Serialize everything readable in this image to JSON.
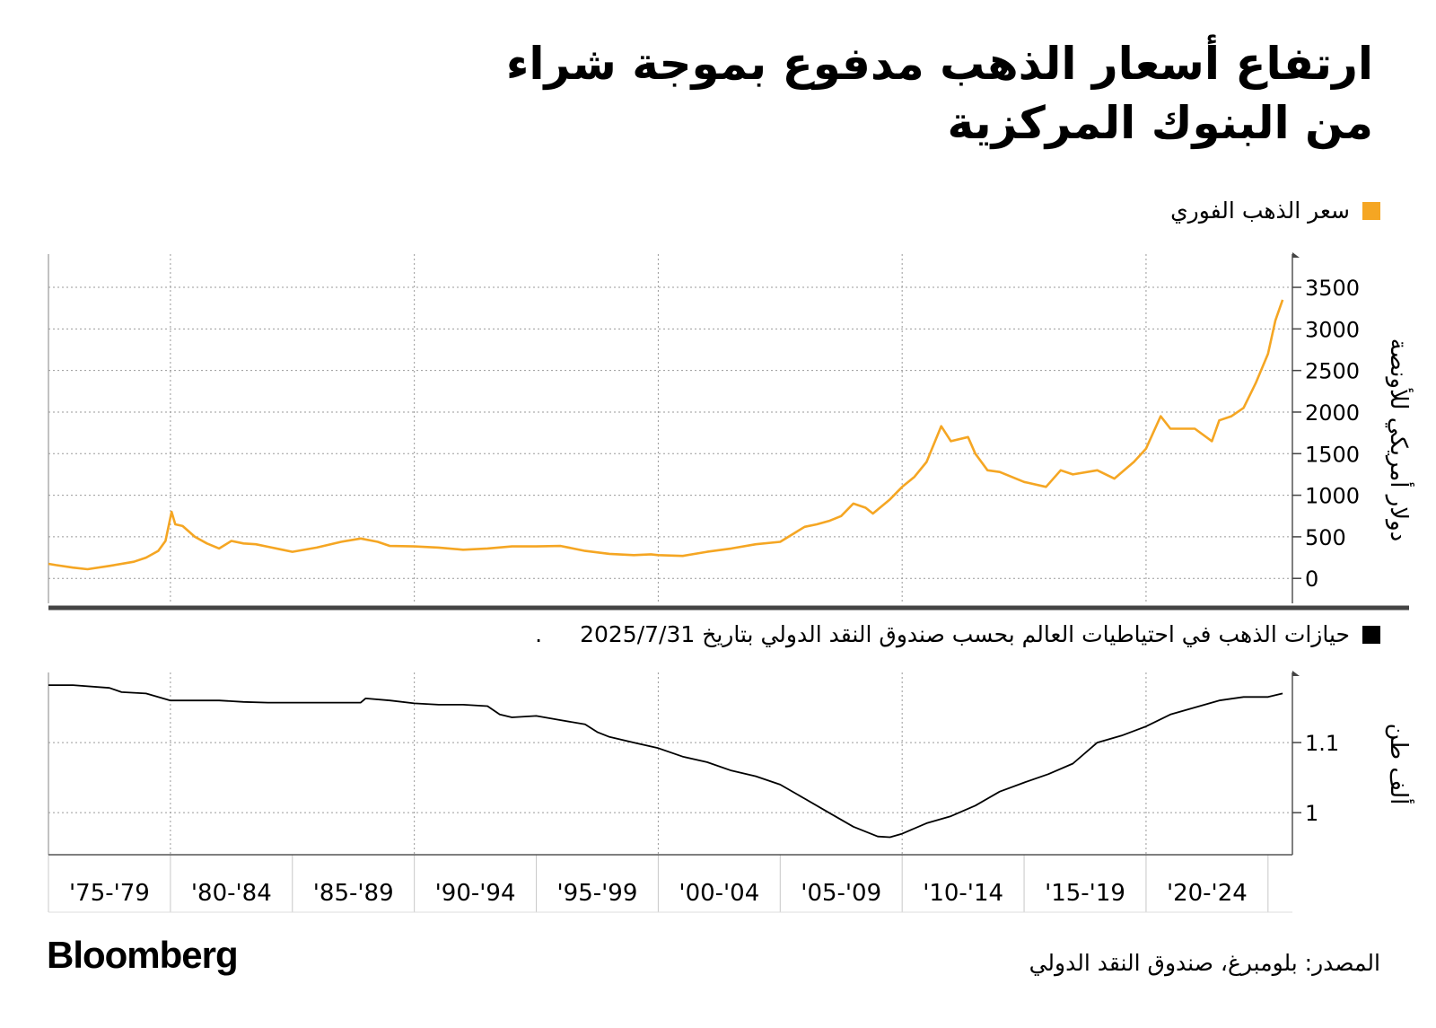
{
  "title": "ارتفاع أسعار الذهب مدفوع بموجة شراء من البنوك المركزية",
  "source": "المصدر: بلومبرغ، صندوق النقد الدولي",
  "brand": "Bloomberg",
  "colors": {
    "gold": "#f5a623",
    "reserves": "#000000",
    "grid": "#9a9a9a"
  },
  "chart_data": [
    {
      "type": "line",
      "legend": "سعر الذهب الفوري",
      "ylabel": "دولار أمريكي للأونصة",
      "ylim": [
        -300,
        3900
      ],
      "yticks": [
        0,
        500,
        1000,
        1500,
        2000,
        2500,
        3000,
        3500
      ],
      "grid": true,
      "legend_position": "top-right",
      "series": [
        {
          "x": [
            1975.0,
            1975.3,
            1976.0,
            1976.6,
            1977.5,
            1978.5,
            1979.0,
            1979.5,
            1979.8,
            1980.05,
            1980.2,
            1980.5,
            1981.0,
            1981.5,
            1982.0,
            1982.5,
            1983.0,
            1983.5,
            1984.0,
            1984.5,
            1985.0,
            1986.0,
            1987.0,
            1987.8,
            1988.5,
            1989.0,
            1990.0,
            1991.0,
            1992.0,
            1993.0,
            1994.0,
            1995.0,
            1996.0,
            1997.0,
            1998.0,
            1999.0,
            1999.7,
            2000.0,
            2001.0,
            2002.0,
            2003.0,
            2004.0,
            2005.0,
            2006.0,
            2006.5,
            2007.0,
            2007.5,
            2008.0,
            2008.5,
            2008.8,
            2009.5,
            2010.0,
            2010.5,
            2011.0,
            2011.6,
            2012.0,
            2012.7,
            2013.0,
            2013.5,
            2014.0,
            2015.0,
            2015.9,
            2016.5,
            2017.0,
            2018.0,
            2018.7,
            2019.5,
            2020.0,
            2020.6,
            2021.0,
            2022.0,
            2022.7,
            2023.0,
            2023.5,
            2024.0,
            2024.5,
            2025.0,
            2025.3,
            2025.6
          ],
          "y": [
            175,
            160,
            130,
            110,
            150,
            200,
            250,
            330,
            450,
            800,
            650,
            630,
            500,
            420,
            360,
            450,
            420,
            410,
            380,
            350,
            320,
            370,
            440,
            480,
            440,
            390,
            385,
            370,
            345,
            360,
            385,
            385,
            390,
            330,
            295,
            280,
            290,
            280,
            270,
            320,
            360,
            410,
            440,
            620,
            650,
            690,
            750,
            900,
            850,
            780,
            950,
            1100,
            1220,
            1400,
            1830,
            1650,
            1700,
            1500,
            1300,
            1280,
            1160,
            1100,
            1300,
            1250,
            1300,
            1200,
            1400,
            1560,
            1950,
            1800,
            1800,
            1650,
            1900,
            1950,
            2050,
            2350,
            2700,
            3100,
            3350
          ]
        }
      ]
    },
    {
      "type": "line",
      "legend": "حيازات الذهب في احتياطيات العالم بحسب صندوق النقد الدولي بتاريخ 2025/7/31",
      "legend_suffix": ".",
      "ylabel": "ألف طن",
      "ylim": [
        0.94,
        1.2
      ],
      "yticks": [
        1,
        1.1
      ],
      "grid": true,
      "legend_position": "top-right",
      "series": [
        {
          "x": [
            1975.0,
            1976.0,
            1977.5,
            1978.0,
            1979.0,
            1980.0,
            1981.0,
            1982.0,
            1983.0,
            1984.0,
            1985.0,
            1986.0,
            1987.0,
            1987.8,
            1988.0,
            1989.0,
            1990.0,
            1991.0,
            1992.0,
            1993.0,
            1993.5,
            1994.0,
            1995.0,
            1996.0,
            1997.0,
            1997.5,
            1998.0,
            1999.0,
            2000.0,
            2001.0,
            2002.0,
            2003.0,
            2004.0,
            2005.0,
            2006.0,
            2007.0,
            2008.0,
            2009.0,
            2009.5,
            2010.0,
            2011.0,
            2012.0,
            2013.0,
            2014.0,
            2015.0,
            2016.0,
            2017.0,
            2018.0,
            2019.0,
            2020.0,
            2021.0,
            2022.0,
            2023.0,
            2024.0,
            2025.0,
            2025.6
          ],
          "y": [
            1.182,
            1.182,
            1.178,
            1.172,
            1.17,
            1.16,
            1.16,
            1.16,
            1.158,
            1.157,
            1.157,
            1.157,
            1.157,
            1.157,
            1.163,
            1.16,
            1.156,
            1.154,
            1.154,
            1.152,
            1.14,
            1.136,
            1.138,
            1.132,
            1.126,
            1.115,
            1.108,
            1.1,
            1.092,
            1.08,
            1.072,
            1.06,
            1.052,
            1.04,
            1.02,
            1.0,
            0.98,
            0.966,
            0.965,
            0.97,
            0.985,
            0.995,
            1.01,
            1.03,
            1.043,
            1.055,
            1.07,
            1.1,
            1.11,
            1.123,
            1.14,
            1.15,
            1.16,
            1.165,
            1.165,
            1.17
          ]
        }
      ]
    }
  ],
  "x_axis": {
    "labels": [
      "'75-'79",
      "'80-'84",
      "'85-'89",
      "'90-'94",
      "'95-'99",
      "'00-'04",
      "'05-'09",
      "'10-'14",
      "'15-'19",
      "'20-'24"
    ],
    "range": [
      1975,
      2026
    ]
  }
}
